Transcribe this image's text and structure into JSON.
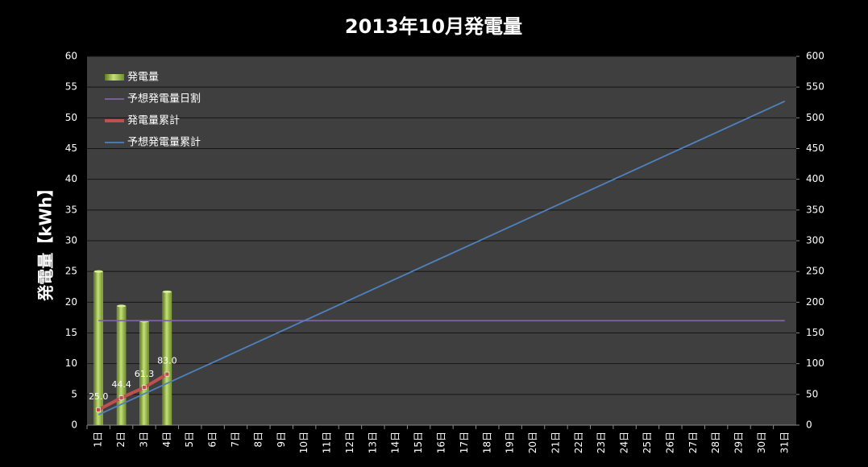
{
  "chart_data": {
    "type": "bar",
    "title": "2013年10月発電量",
    "y_label": "発電量【kWh】",
    "categories": [
      "1日",
      "2日",
      "3日",
      "4日",
      "5日",
      "6日",
      "7日",
      "8日",
      "9日",
      "10日",
      "11日",
      "12日",
      "13日",
      "14日",
      "15日",
      "16日",
      "17日",
      "18日",
      "19日",
      "20日",
      "21日",
      "22日",
      "23日",
      "24日",
      "25日",
      "26日",
      "27日",
      "28日",
      "29日",
      "30日",
      "31日"
    ],
    "ylim": [
      0,
      60
    ],
    "yticks": [
      0,
      5,
      10,
      15,
      20,
      25,
      30,
      35,
      40,
      45,
      50,
      55,
      60
    ],
    "y2lim": [
      0,
      600
    ],
    "y2ticks": [
      0,
      50,
      100,
      150,
      200,
      250,
      300,
      350,
      400,
      450,
      500,
      550,
      600
    ],
    "grid": true,
    "legend": "upper left",
    "series": [
      {
        "name": "発電量",
        "type": "bar",
        "color": "#9bbb59",
        "values": [
          25.0,
          19.4,
          16.9,
          21.7,
          null,
          null,
          null,
          null,
          null,
          null,
          null,
          null,
          null,
          null,
          null,
          null,
          null,
          null,
          null,
          null,
          null,
          null,
          null,
          null,
          null,
          null,
          null,
          null,
          null,
          null,
          null
        ]
      },
      {
        "name": "予想発電量日割",
        "type": "line",
        "color": "#8064a2",
        "values": [
          17,
          17,
          17,
          17,
          17,
          17,
          17,
          17,
          17,
          17,
          17,
          17,
          17,
          17,
          17,
          17,
          17,
          17,
          17,
          17,
          17,
          17,
          17,
          17,
          17,
          17,
          17,
          17,
          17,
          17,
          17
        ]
      },
      {
        "name": "発電量累計",
        "type": "line",
        "axis": "y2",
        "color": "#c0504d",
        "markers": true,
        "values": [
          25,
          44.4,
          61.3,
          83,
          null,
          null,
          null,
          null,
          null,
          null,
          null,
          null,
          null,
          null,
          null,
          null,
          null,
          null,
          null,
          null,
          null,
          null,
          null,
          null,
          null,
          null,
          null,
          null,
          null,
          null,
          null
        ],
        "value_labels": [
          "25.0",
          "44.4",
          "61.3",
          "83.0",
          null,
          null,
          null,
          null,
          null,
          null,
          null,
          null,
          null,
          null,
          null,
          null,
          null,
          null,
          null,
          null,
          null,
          null,
          null,
          null,
          null,
          null,
          null,
          null,
          null,
          null,
          null
        ]
      },
      {
        "name": "予想発電量累計",
        "type": "line",
        "axis": "y2",
        "color": "#4f81bd",
        "values": [
          17,
          34,
          51,
          68,
          85,
          102,
          119,
          136,
          153,
          170,
          187,
          204,
          221,
          238,
          255,
          272,
          289,
          306,
          323,
          340,
          357,
          374,
          391,
          408,
          425,
          442,
          459,
          476,
          493,
          510,
          527
        ]
      }
    ]
  }
}
